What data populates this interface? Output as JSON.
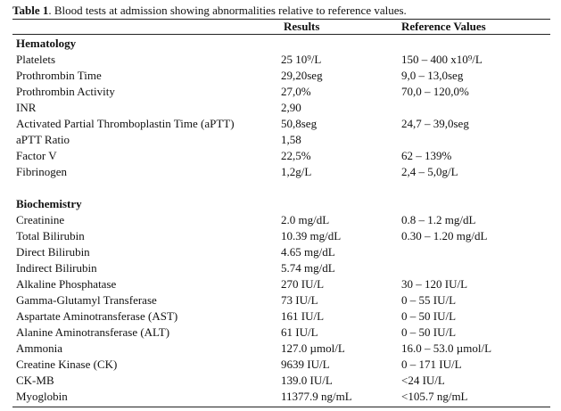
{
  "caption": {
    "label": "Table 1",
    "text": ". Blood tests at admission showing abnormalities relative to reference values."
  },
  "header": {
    "results": "Results",
    "reference": "Reference Values"
  },
  "sections": [
    {
      "title": "Hematology",
      "rows": [
        {
          "name": "Platelets",
          "result": "25 10⁹/L",
          "reference": "150 – 400 x10⁹/L"
        },
        {
          "name": "Prothrombin Time",
          "result": "29,20seg",
          "reference": "9,0 – 13,0seg"
        },
        {
          "name": "Prothrombin Activity",
          "result": "27,0%",
          "reference": "70,0 – 120,0%"
        },
        {
          "name": "INR",
          "result": "2,90",
          "reference": ""
        },
        {
          "name": "Activated Partial Thromboplastin Time (aPTT)",
          "result": "50,8seg",
          "reference": "24,7 – 39,0seg"
        },
        {
          "name": "aPTT Ratio",
          "result": "1,58",
          "reference": ""
        },
        {
          "name": "Factor V",
          "result": "22,5%",
          "reference": "62 – 139%"
        },
        {
          "name": "Fibrinogen",
          "result": "1,2g/L",
          "reference": "2,4 – 5,0g/L"
        }
      ]
    },
    {
      "title": "Biochemistry",
      "rows": [
        {
          "name": "Creatinine",
          "result": "2.0 mg/dL",
          "reference": "0.8 – 1.2 mg/dL"
        },
        {
          "name": "Total Bilirubin",
          "result": "10.39 mg/dL",
          "reference": "0.30 – 1.20 mg/dL"
        },
        {
          "name": "Direct Bilirubin",
          "result": "4.65 mg/dL",
          "reference": ""
        },
        {
          "name": "Indirect Bilirubin",
          "result": "5.74 mg/dL",
          "reference": ""
        },
        {
          "name": "Alkaline Phosphatase",
          "result": "270 IU/L",
          "reference": "30 – 120 IU/L"
        },
        {
          "name": "Gamma-Glutamyl Transferase",
          "result": "73 IU/L",
          "reference": "0 – 55 IU/L"
        },
        {
          "name": "Aspartate Aminotransferase (AST)",
          "result": "161 IU/L",
          "reference": "0 – 50 IU/L"
        },
        {
          "name": "Alanine Aminotransferase (ALT)",
          "result": "61 IU/L",
          "reference": "0 – 50 IU/L"
        },
        {
          "name": "Ammonia",
          "result": "127.0 µmol/L",
          "reference": "16.0 – 53.0 µmol/L"
        },
        {
          "name": "Creatine Kinase (CK)",
          "result": "9639 IU/L",
          "reference": "0 – 171 IU/L"
        },
        {
          "name": "CK-MB",
          "result": "139.0 IU/L",
          "reference": "<24 IU/L"
        },
        {
          "name": "Myoglobin",
          "result": "11377.9 ng/mL",
          "reference": "<105.7 ng/mL"
        }
      ]
    }
  ]
}
